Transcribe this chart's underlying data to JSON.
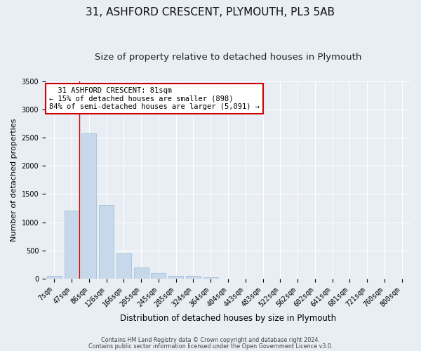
{
  "title1": "31, ASHFORD CRESCENT, PLYMOUTH, PL3 5AB",
  "title2": "Size of property relative to detached houses in Plymouth",
  "xlabel": "Distribution of detached houses by size in Plymouth",
  "ylabel": "Number of detached properties",
  "bar_labels": [
    "7sqm",
    "47sqm",
    "86sqm",
    "126sqm",
    "166sqm",
    "205sqm",
    "245sqm",
    "285sqm",
    "324sqm",
    "364sqm",
    "404sqm",
    "443sqm",
    "483sqm",
    "522sqm",
    "562sqm",
    "602sqm",
    "641sqm",
    "681sqm",
    "721sqm",
    "760sqm",
    "800sqm"
  ],
  "bar_values": [
    50,
    1210,
    2580,
    1300,
    450,
    200,
    105,
    55,
    50,
    30,
    5,
    3,
    2,
    0,
    0,
    0,
    0,
    0,
    0,
    0,
    0
  ],
  "bar_color": "#c8d8eb",
  "bar_edgecolor": "#9ab8d0",
  "highlight_color": "#cc0000",
  "highlight_bar_index": 1,
  "ylim": [
    0,
    3500
  ],
  "yticks": [
    0,
    500,
    1000,
    1500,
    2000,
    2500,
    3000,
    3500
  ],
  "annotation_text": "  31 ASHFORD CRESCENT: 81sqm\n← 15% of detached houses are smaller (898)\n84% of semi-detached houses are larger (5,091) →",
  "annotation_box_color": "#ffffff",
  "annotation_box_edgecolor": "#cc0000",
  "footer1": "Contains HM Land Registry data © Crown copyright and database right 2024.",
  "footer2": "Contains public sector information licensed under the Open Government Licence v3.0.",
  "background_color": "#e8eef4",
  "plot_background": "#e8eef4",
  "grid_color": "#ffffff",
  "title1_fontsize": 11,
  "title2_fontsize": 9.5,
  "xlabel_fontsize": 8.5,
  "ylabel_fontsize": 8,
  "tick_fontsize": 7,
  "annotation_fontsize": 7.5
}
